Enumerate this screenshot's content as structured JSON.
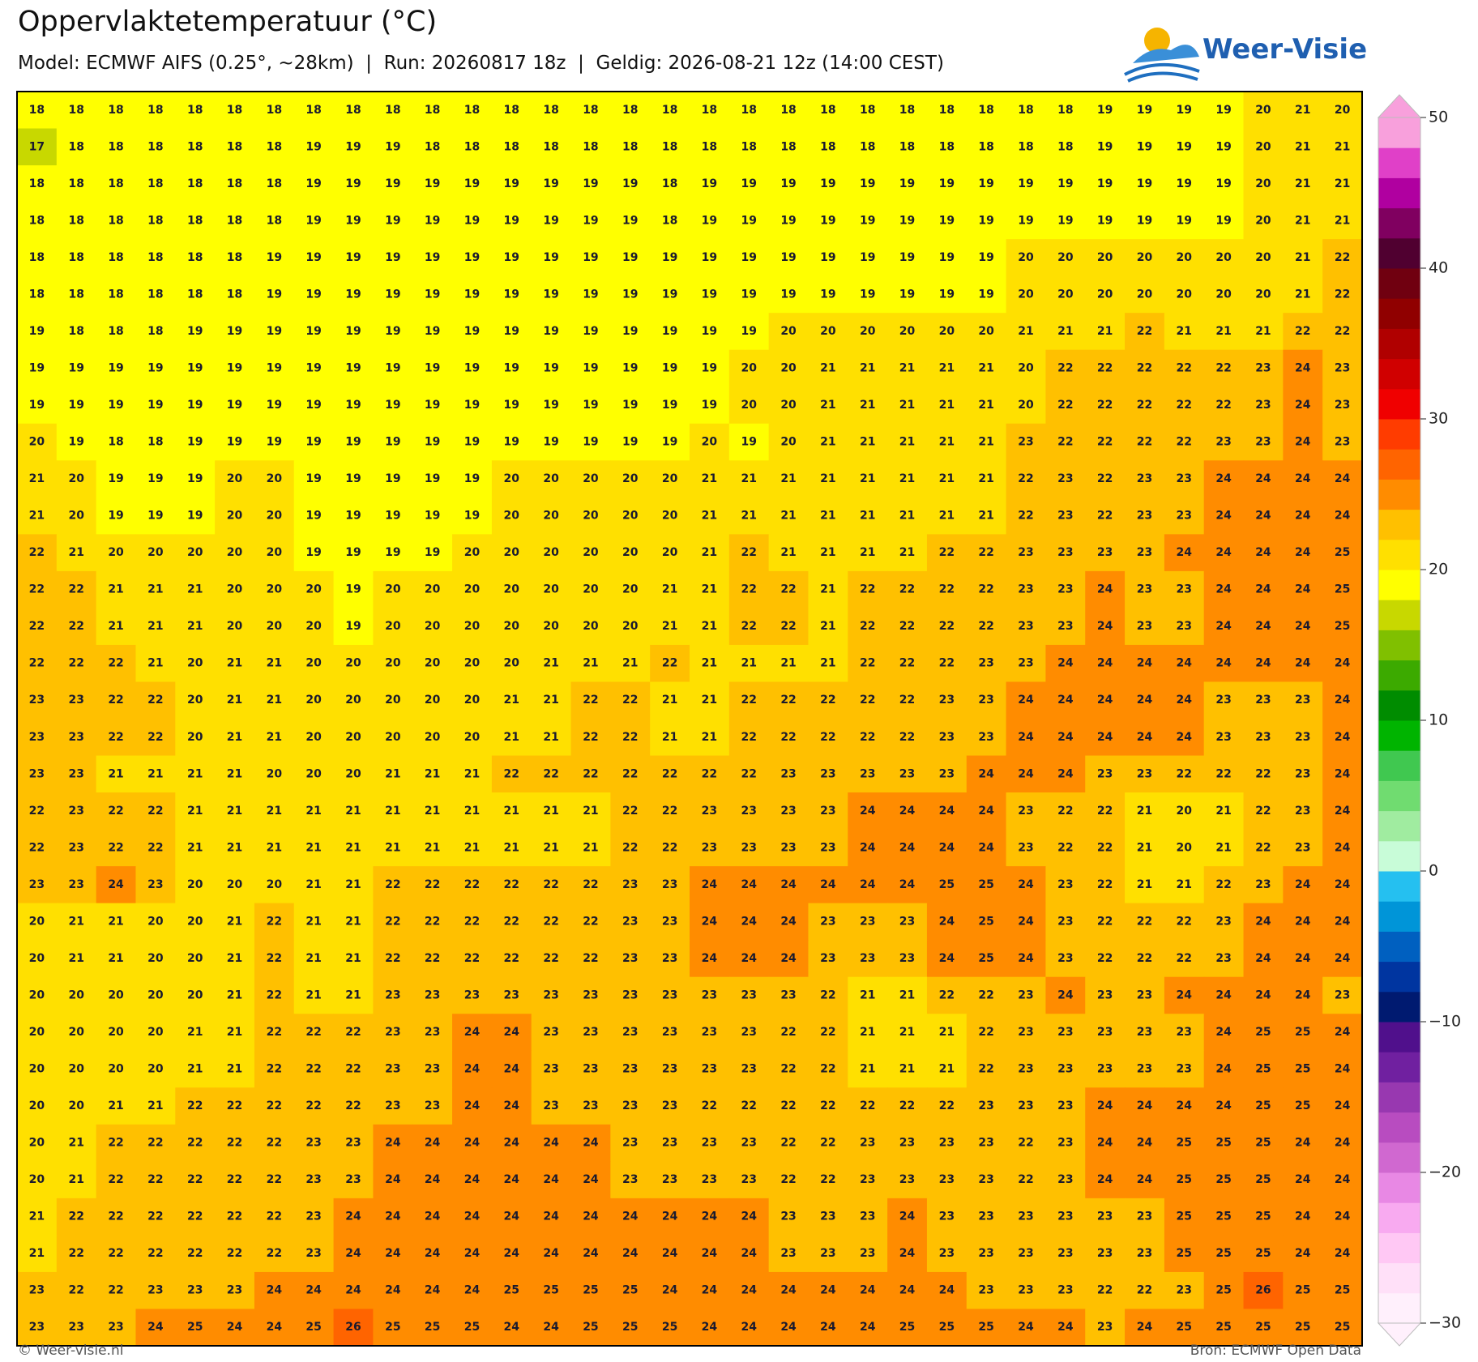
{
  "chart_data": {
    "type": "heatmap",
    "title": "Oppervlaktetemperatuur (°C)",
    "subtitle": "Model: ECMWF AIFS (0.25°, ~28km)  |  Run: 20260817 18z  |  Geldig: 2026-08-21 12z (14:00 CEST)",
    "logo": "Weer-Visie",
    "footer_left": "© Weer-visie.nl",
    "footer_right": "Bron: ECMWF Open Data",
    "values": [
      [
        18,
        18,
        18,
        18,
        18,
        18,
        18,
        18,
        18,
        18,
        18,
        18,
        18,
        18,
        18,
        18,
        18,
        18,
        18,
        18,
        18,
        18,
        18,
        18,
        18,
        18,
        18,
        19,
        19,
        19,
        19,
        20,
        21,
        20
      ],
      [
        17,
        18,
        18,
        18,
        18,
        18,
        18,
        19,
        19,
        19,
        18,
        18,
        18,
        18,
        18,
        18,
        18,
        18,
        18,
        18,
        18,
        18,
        18,
        18,
        18,
        18,
        18,
        19,
        19,
        19,
        19,
        20,
        21,
        21
      ],
      [
        18,
        18,
        18,
        18,
        18,
        18,
        18,
        19,
        19,
        19,
        19,
        19,
        19,
        19,
        19,
        19,
        18,
        19,
        19,
        19,
        19,
        19,
        19,
        19,
        19,
        19,
        19,
        19,
        19,
        19,
        19,
        20,
        21,
        21
      ],
      [
        18,
        18,
        18,
        18,
        18,
        18,
        18,
        19,
        19,
        19,
        19,
        19,
        19,
        19,
        19,
        19,
        18,
        19,
        19,
        19,
        19,
        19,
        19,
        19,
        19,
        19,
        19,
        19,
        19,
        19,
        19,
        20,
        21,
        21
      ],
      [
        18,
        18,
        18,
        18,
        18,
        18,
        19,
        19,
        19,
        19,
        19,
        19,
        19,
        19,
        19,
        19,
        19,
        19,
        19,
        19,
        19,
        19,
        19,
        19,
        19,
        20,
        20,
        20,
        20,
        20,
        20,
        20,
        21,
        22
      ],
      [
        18,
        18,
        18,
        18,
        18,
        18,
        19,
        19,
        19,
        19,
        19,
        19,
        19,
        19,
        19,
        19,
        19,
        19,
        19,
        19,
        19,
        19,
        19,
        19,
        19,
        20,
        20,
        20,
        20,
        20,
        20,
        20,
        21,
        22
      ],
      [
        19,
        18,
        18,
        18,
        19,
        19,
        19,
        19,
        19,
        19,
        19,
        19,
        19,
        19,
        19,
        19,
        19,
        19,
        19,
        20,
        20,
        20,
        20,
        20,
        20,
        21,
        21,
        21,
        22,
        21,
        21,
        21,
        22,
        22
      ],
      [
        19,
        19,
        19,
        19,
        19,
        19,
        19,
        19,
        19,
        19,
        19,
        19,
        19,
        19,
        19,
        19,
        19,
        19,
        20,
        20,
        21,
        21,
        21,
        21,
        21,
        20,
        22,
        22,
        22,
        22,
        22,
        23,
        24,
        23
      ],
      [
        19,
        19,
        19,
        19,
        19,
        19,
        19,
        19,
        19,
        19,
        19,
        19,
        19,
        19,
        19,
        19,
        19,
        19,
        20,
        20,
        21,
        21,
        21,
        21,
        21,
        20,
        22,
        22,
        22,
        22,
        22,
        23,
        24,
        23
      ],
      [
        20,
        19,
        18,
        18,
        19,
        19,
        19,
        19,
        19,
        19,
        19,
        19,
        19,
        19,
        19,
        19,
        19,
        20,
        19,
        20,
        21,
        21,
        21,
        21,
        21,
        23,
        22,
        22,
        22,
        22,
        23,
        23,
        24,
        23
      ],
      [
        21,
        20,
        19,
        19,
        19,
        20,
        20,
        19,
        19,
        19,
        19,
        19,
        20,
        20,
        20,
        20,
        20,
        21,
        21,
        21,
        21,
        21,
        21,
        21,
        21,
        22,
        23,
        22,
        23,
        23,
        24,
        24,
        24,
        24
      ],
      [
        21,
        20,
        19,
        19,
        19,
        20,
        20,
        19,
        19,
        19,
        19,
        19,
        20,
        20,
        20,
        20,
        20,
        21,
        21,
        21,
        21,
        21,
        21,
        21,
        21,
        22,
        23,
        22,
        23,
        23,
        24,
        24,
        24,
        24
      ],
      [
        22,
        21,
        20,
        20,
        20,
        20,
        20,
        19,
        19,
        19,
        19,
        20,
        20,
        20,
        20,
        20,
        20,
        21,
        22,
        21,
        21,
        21,
        21,
        22,
        22,
        23,
        23,
        23,
        23,
        24,
        24,
        24,
        24,
        25
      ],
      [
        22,
        22,
        21,
        21,
        21,
        20,
        20,
        20,
        19,
        20,
        20,
        20,
        20,
        20,
        20,
        20,
        21,
        21,
        22,
        22,
        21,
        22,
        22,
        22,
        22,
        23,
        23,
        24,
        23,
        23,
        24,
        24,
        24,
        25
      ],
      [
        22,
        22,
        21,
        21,
        21,
        20,
        20,
        20,
        19,
        20,
        20,
        20,
        20,
        20,
        20,
        20,
        21,
        21,
        22,
        22,
        21,
        22,
        22,
        22,
        22,
        23,
        23,
        24,
        23,
        23,
        24,
        24,
        24,
        25
      ],
      [
        22,
        22,
        22,
        21,
        20,
        21,
        21,
        20,
        20,
        20,
        20,
        20,
        20,
        21,
        21,
        21,
        22,
        21,
        21,
        21,
        21,
        22,
        22,
        22,
        23,
        23,
        24,
        24,
        24,
        24,
        24,
        24,
        24,
        24
      ],
      [
        23,
        23,
        22,
        22,
        20,
        21,
        21,
        20,
        20,
        20,
        20,
        20,
        21,
        21,
        22,
        22,
        21,
        21,
        22,
        22,
        22,
        22,
        22,
        23,
        23,
        24,
        24,
        24,
        24,
        24,
        23,
        23,
        23,
        24
      ],
      [
        23,
        23,
        22,
        22,
        20,
        21,
        21,
        20,
        20,
        20,
        20,
        20,
        21,
        21,
        22,
        22,
        21,
        21,
        22,
        22,
        22,
        22,
        22,
        23,
        23,
        24,
        24,
        24,
        24,
        24,
        23,
        23,
        23,
        24
      ],
      [
        23,
        23,
        21,
        21,
        21,
        21,
        20,
        20,
        20,
        21,
        21,
        21,
        22,
        22,
        22,
        22,
        22,
        22,
        22,
        23,
        23,
        23,
        23,
        23,
        24,
        24,
        24,
        23,
        23,
        22,
        22,
        22,
        23,
        24
      ],
      [
        22,
        23,
        22,
        22,
        21,
        21,
        21,
        21,
        21,
        21,
        21,
        21,
        21,
        21,
        21,
        22,
        22,
        23,
        23,
        23,
        23,
        24,
        24,
        24,
        24,
        23,
        22,
        22,
        21,
        20,
        21,
        22,
        23,
        24
      ],
      [
        22,
        23,
        22,
        22,
        21,
        21,
        21,
        21,
        21,
        21,
        21,
        21,
        21,
        21,
        21,
        22,
        22,
        23,
        23,
        23,
        23,
        24,
        24,
        24,
        24,
        23,
        22,
        22,
        21,
        20,
        21,
        22,
        23,
        24
      ],
      [
        23,
        23,
        24,
        23,
        20,
        20,
        20,
        21,
        21,
        22,
        22,
        22,
        22,
        22,
        22,
        23,
        23,
        24,
        24,
        24,
        24,
        24,
        24,
        25,
        25,
        24,
        23,
        22,
        21,
        21,
        22,
        23,
        24,
        24
      ],
      [
        20,
        21,
        21,
        20,
        20,
        21,
        22,
        21,
        21,
        22,
        22,
        22,
        22,
        22,
        22,
        23,
        23,
        24,
        24,
        24,
        23,
        23,
        23,
        24,
        25,
        24,
        23,
        22,
        22,
        22,
        23,
        24,
        24,
        24
      ],
      [
        20,
        21,
        21,
        20,
        20,
        21,
        22,
        21,
        21,
        22,
        22,
        22,
        22,
        22,
        22,
        23,
        23,
        24,
        24,
        24,
        23,
        23,
        23,
        24,
        25,
        24,
        23,
        22,
        22,
        22,
        23,
        24,
        24,
        24
      ],
      [
        20,
        20,
        20,
        20,
        20,
        21,
        22,
        21,
        21,
        23,
        23,
        23,
        23,
        23,
        23,
        23,
        23,
        23,
        23,
        23,
        22,
        21,
        21,
        22,
        22,
        23,
        24,
        23,
        23,
        24,
        24,
        24,
        24,
        23
      ],
      [
        20,
        20,
        20,
        20,
        21,
        21,
        22,
        22,
        22,
        23,
        23,
        24,
        24,
        23,
        23,
        23,
        23,
        23,
        23,
        22,
        22,
        21,
        21,
        21,
        22,
        23,
        23,
        23,
        23,
        23,
        24,
        25,
        25,
        24
      ],
      [
        20,
        20,
        20,
        20,
        21,
        21,
        22,
        22,
        22,
        23,
        23,
        24,
        24,
        23,
        23,
        23,
        23,
        23,
        23,
        22,
        22,
        21,
        21,
        21,
        22,
        23,
        23,
        23,
        23,
        23,
        24,
        25,
        25,
        24
      ],
      [
        20,
        20,
        21,
        21,
        22,
        22,
        22,
        22,
        22,
        23,
        23,
        24,
        24,
        23,
        23,
        23,
        23,
        22,
        22,
        22,
        22,
        22,
        22,
        22,
        23,
        23,
        23,
        24,
        24,
        24,
        24,
        25,
        25,
        24
      ],
      [
        20,
        21,
        22,
        22,
        22,
        22,
        22,
        23,
        23,
        24,
        24,
        24,
        24,
        24,
        24,
        23,
        23,
        23,
        23,
        22,
        22,
        23,
        23,
        23,
        23,
        22,
        23,
        24,
        24,
        25,
        25,
        25,
        24,
        24
      ],
      [
        20,
        21,
        22,
        22,
        22,
        22,
        22,
        23,
        23,
        24,
        24,
        24,
        24,
        24,
        24,
        23,
        23,
        23,
        23,
        22,
        22,
        23,
        23,
        23,
        23,
        22,
        23,
        24,
        24,
        25,
        25,
        25,
        24,
        24
      ],
      [
        21,
        22,
        22,
        22,
        22,
        22,
        22,
        23,
        24,
        24,
        24,
        24,
        24,
        24,
        24,
        24,
        24,
        24,
        24,
        23,
        23,
        23,
        24,
        23,
        23,
        23,
        23,
        23,
        23,
        25,
        25,
        25,
        24,
        24
      ],
      [
        21,
        22,
        22,
        22,
        22,
        22,
        22,
        23,
        24,
        24,
        24,
        24,
        24,
        24,
        24,
        24,
        24,
        24,
        24,
        23,
        23,
        23,
        24,
        23,
        23,
        23,
        23,
        23,
        23,
        25,
        25,
        25,
        24,
        24
      ],
      [
        23,
        22,
        22,
        23,
        23,
        23,
        24,
        24,
        24,
        24,
        24,
        24,
        25,
        25,
        25,
        25,
        24,
        24,
        24,
        24,
        24,
        24,
        24,
        24,
        23,
        23,
        23,
        22,
        22,
        23,
        25,
        26,
        25,
        25
      ],
      [
        23,
        23,
        23,
        24,
        25,
        24,
        24,
        25,
        26,
        25,
        25,
        25,
        24,
        24,
        25,
        25,
        25,
        24,
        24,
        24,
        24,
        24,
        25,
        25,
        25,
        24,
        24,
        23,
        24,
        25,
        25,
        25,
        25,
        25
      ]
    ],
    "colorbar": {
      "lim": [
        -30,
        50
      ],
      "ticks": [
        {
          "value": -30,
          "label": "−30"
        },
        {
          "value": -20,
          "label": "−20"
        },
        {
          "value": -10,
          "label": "−10"
        },
        0,
        10,
        20,
        30,
        40,
        50
      ],
      "colors": [
        "#fff0fc",
        "#ffe0f8",
        "#ffc8f4",
        "#f8aaf0",
        "#e888e4",
        "#d068d0",
        "#b84cc0",
        "#9838b0",
        "#7020a0",
        "#50108c",
        "#001a70",
        "#0035a0",
        "#0060c0",
        "#0095d8",
        "#25c0f0",
        "#c8fcd8",
        "#a0eca0",
        "#70dc70",
        "#40c850",
        "#00b400",
        "#008c00",
        "#3caa00",
        "#80c000",
        "#c8d800",
        "#ffff00",
        "#ffe000",
        "#ffc000",
        "#ff8c00",
        "#ff6400",
        "#ff3c00",
        "#f00000",
        "#d00000",
        "#b00000",
        "#900000",
        "#700010",
        "#500030",
        "#800060",
        "#b000a0",
        "#e040c8",
        "#f8a0dc"
      ]
    }
  }
}
